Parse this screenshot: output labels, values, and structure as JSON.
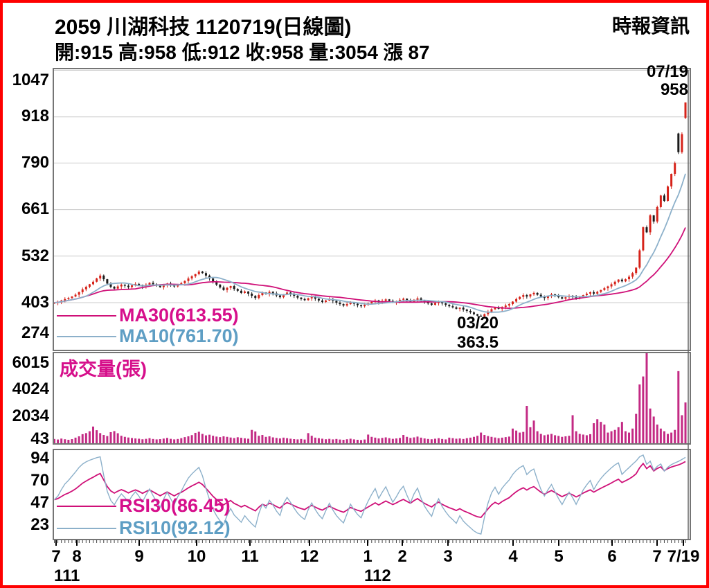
{
  "header": {
    "title": "2059  川湖科技 1120719(日線圖)",
    "brand": "時報資訊",
    "ohlc_line": "開:915 高:958 低:912 收:958 量:3054 漲 87"
  },
  "annotations": {
    "last_date": "07/19",
    "last_price": "958",
    "low_date": "03/20",
    "low_price": "363.5"
  },
  "legends": {
    "ma30": "MA30(613.55)",
    "ma10": "MA10(761.70)",
    "volume_title": "成交量(張)",
    "rsi30": "RSI30(86.45)",
    "rsi10": "RSI10(92.12)"
  },
  "colors": {
    "up": "#d6231a",
    "down": "#1b1b1b",
    "ma30": "#cf1078",
    "ma10": "#8cb0ca",
    "rsi30": "#cf1078",
    "rsi10": "#8cb0ca",
    "volume": "#c32a84",
    "grid": "#cbcbcb",
    "border": "#757575",
    "cursor": "#666666",
    "frame": "#fe0000",
    "text": "#000000",
    "label_ma30": "#d60f8b",
    "label_ma10": "#5e9ec4"
  },
  "axes": {
    "price_labels": [
      [
        "1047",
        112
      ],
      [
        "918",
        164
      ],
      [
        "790",
        231
      ],
      [
        "661",
        298
      ],
      [
        "532",
        366
      ],
      [
        "403",
        433
      ],
      [
        "274",
        477
      ]
    ],
    "volume_labels": [
      [
        "6015",
        520
      ],
      [
        "4024",
        558
      ],
      [
        "2034",
        597
      ],
      [
        "43",
        630
      ]
    ],
    "rsi_labels": [
      [
        "94",
        658
      ],
      [
        "70",
        690
      ],
      [
        "47",
        722
      ],
      [
        "23",
        754
      ]
    ],
    "month_labels": [
      [
        "7",
        77
      ],
      [
        "8",
        107
      ],
      [
        "9",
        197
      ],
      [
        "10",
        280
      ],
      [
        "11",
        357
      ],
      [
        "12",
        443
      ],
      [
        "1",
        527
      ],
      [
        "2",
        577
      ],
      [
        "3",
        643
      ],
      [
        "4",
        737
      ],
      [
        "5",
        803
      ],
      [
        "6",
        880
      ],
      [
        "7",
        945
      ],
      [
        "7/19",
        983
      ]
    ],
    "year_labels": [
      [
        "111",
        92
      ],
      [
        "112",
        540
      ]
    ]
  },
  "chart_data": {
    "type": "candlestick",
    "title": "2059 川湖科技 1120719 日線圖",
    "panels": [
      "price+MA10+MA30",
      "volume",
      "RSI10+RSI30"
    ],
    "price_axis_ticks": [
      274,
      403,
      532,
      661,
      790,
      918,
      1047
    ],
    "volume_axis_ticks": [
      43,
      2034,
      4024,
      6015
    ],
    "rsi_axis_ticks": [
      23,
      47,
      70,
      94
    ],
    "x_months": [
      "2022-07",
      "2022-08",
      "2022-09",
      "2022-10",
      "2022-11",
      "2022-12",
      "2023-01",
      "2023-02",
      "2023-03",
      "2023-04",
      "2023-05",
      "2023-06",
      "2023-07"
    ],
    "last_candle": {
      "open": 915,
      "high": 958,
      "low": 912,
      "close": 958,
      "volume": 3054,
      "change": 87
    },
    "low_point": {
      "date": "03/20",
      "low": 363.5
    },
    "ma_values": {
      "ma30": 613.55,
      "ma10": 761.7
    },
    "rsi_values": {
      "rsi30": 86.45,
      "rsi10": 92.12
    },
    "price": {
      "first_open": 402,
      "closes": [
        403,
        405,
        409,
        413,
        416,
        420,
        425,
        432,
        440,
        447,
        454,
        461,
        470,
        478,
        468,
        456,
        447,
        442,
        448,
        453,
        450,
        446,
        451,
        455,
        452,
        448,
        453,
        458,
        454,
        450,
        446,
        451,
        456,
        452,
        448,
        453,
        457,
        463,
        470,
        476,
        482,
        489,
        485,
        478,
        470,
        461,
        453,
        445,
        438,
        444,
        449,
        441,
        436,
        430,
        434,
        428,
        422,
        416,
        424,
        431,
        427,
        433,
        429,
        423,
        418,
        426,
        431,
        427,
        422,
        417,
        413,
        410,
        415,
        419,
        414,
        409,
        405,
        409,
        413,
        408,
        403,
        399,
        395,
        399,
        404,
        400,
        396,
        393,
        397,
        401,
        405,
        409,
        404,
        408,
        412,
        408,
        404,
        407,
        411,
        414,
        410,
        406,
        411,
        415,
        410,
        405,
        401,
        397,
        402,
        406,
        401,
        397,
        393,
        390,
        386,
        389,
        384,
        380,
        376,
        371,
        367,
        365,
        371,
        378,
        385,
        390,
        386,
        391,
        395,
        399,
        406,
        413,
        419,
        424,
        420,
        426,
        430,
        425,
        420,
        416,
        421,
        426,
        422,
        418,
        414,
        418,
        422,
        419,
        415,
        419,
        424,
        428,
        432,
        428,
        433,
        438,
        443,
        448,
        454,
        461,
        467,
        462,
        468,
        475,
        485,
        500,
        548,
        612,
        598,
        645,
        628,
        668,
        700,
        685,
        725,
        760,
        790,
        820,
        870,
        958
      ],
      "open_overrides": {
        "177": 872,
        "179": 915
      },
      "high_overrides": {
        "179": 958
      },
      "low_overrides": {
        "121": 363.5,
        "179": 912
      },
      "ma_windows": {
        "ma10": 10,
        "ma30": 24
      }
    },
    "volumes": [
      320,
      280,
      350,
      300,
      260,
      310,
      420,
      520,
      680,
      760,
      900,
      1250,
      980,
      760,
      620,
      540,
      830,
      910,
      750,
      560,
      480,
      430,
      390,
      360,
      340,
      300,
      330,
      380,
      320,
      290,
      310,
      350,
      400,
      330,
      290,
      320,
      380,
      460,
      520,
      610,
      780,
      860,
      700,
      590,
      640,
      560,
      500,
      460,
      520,
      480,
      430,
      390,
      450,
      410,
      370,
      340,
      1000,
      880,
      560,
      620,
      480,
      520,
      440,
      400,
      360,
      420,
      380,
      340,
      310,
      290,
      320,
      280,
      760,
      560,
      420,
      380,
      340,
      300,
      330,
      290,
      320,
      280,
      260,
      300,
      340,
      290,
      260,
      240,
      280,
      650,
      480,
      420,
      360,
      400,
      440,
      380,
      330,
      360,
      400,
      620,
      480,
      400,
      440,
      500,
      420,
      360,
      320,
      300,
      340,
      380,
      320,
      290,
      420,
      380,
      340,
      360,
      320,
      380,
      420,
      480,
      560,
      800,
      620,
      540,
      480,
      430,
      380,
      420,
      460,
      500,
      1100,
      950,
      800,
      850,
      2800,
      1200,
      1700,
      900,
      700,
      600,
      650,
      700,
      600,
      550,
      480,
      520,
      560,
      2100,
      900,
      700,
      650,
      600,
      680,
      1500,
      1800,
      1600,
      1400,
      800,
      900,
      1000,
      1200,
      1600,
      900,
      800,
      1100,
      2200,
      4400,
      5000,
      6900,
      2600,
      2000,
      1400,
      1100,
      900,
      700,
      800,
      1000,
      5400,
      2100,
      3054
    ],
    "rsi_periods": {
      "rsi10": 7,
      "rsi30": 22
    }
  }
}
